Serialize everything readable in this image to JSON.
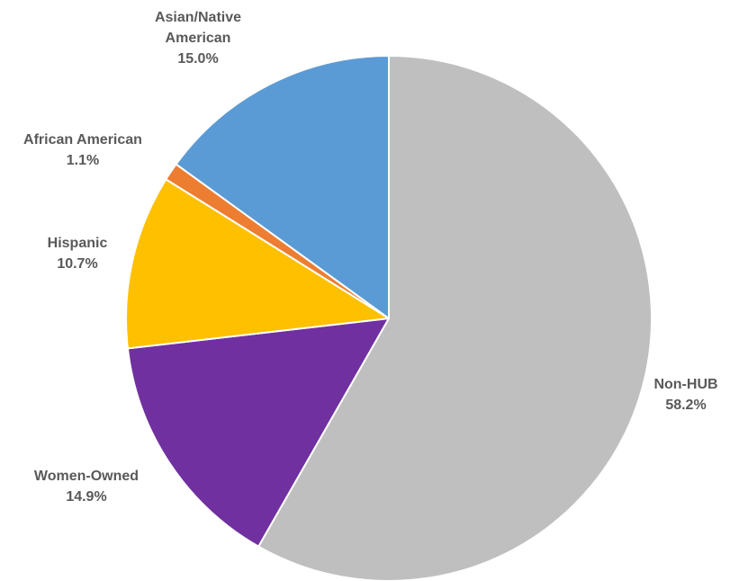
{
  "chart_data": {
    "type": "pie",
    "title": "",
    "series": [
      {
        "values": [
          58.2,
          14.9,
          10.7,
          1.1,
          15.0
        ]
      }
    ],
    "slices": [
      {
        "label": "Non-HUB",
        "value": 58.2,
        "value_label": "58.2%",
        "color": "#BFBFBF"
      },
      {
        "label": "Women-Owned",
        "value": 14.9,
        "value_label": "14.9%",
        "color": "#7030A0"
      },
      {
        "label": "Hispanic",
        "value": 10.7,
        "value_label": "10.7%",
        "color": "#FFC000"
      },
      {
        "label": "African American",
        "value": 1.1,
        "value_label": "1.1%",
        "color": "#ED7D31"
      },
      {
        "label": "Asian/Native American",
        "label_lines": [
          "Asian/Native",
          "American"
        ],
        "value": 15.0,
        "value_label": "15.0%",
        "color": "#5B9BD5"
      }
    ],
    "start_direction": "top",
    "slice_order": "clockwise",
    "legend": "none",
    "data_labels": "outside"
  }
}
